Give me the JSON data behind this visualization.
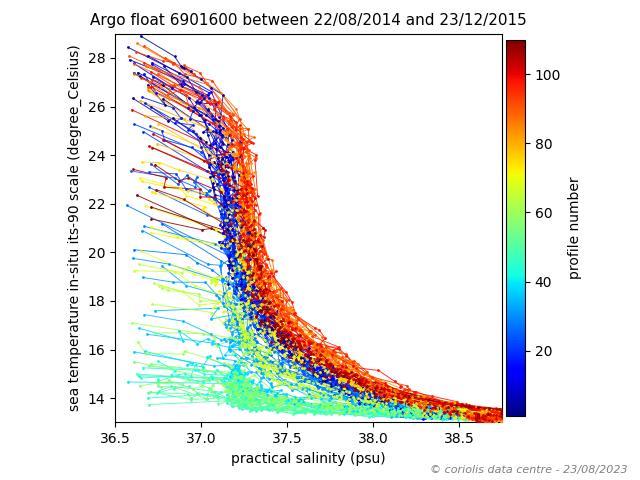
{
  "title": "Argo float 6901600 between 22/08/2014 and 23/12/2015",
  "xlabel": "practical salinity (psu)",
  "ylabel": "sea temperature in-situ its-90 scale (degree_Celsius)",
  "colorbar_label": "profile number",
  "xlim": [
    36.5,
    38.75
  ],
  "ylim": [
    13.0,
    29.0
  ],
  "xticks": [
    36.5,
    37.0,
    37.5,
    38.0,
    38.5
  ],
  "yticks": [
    14,
    16,
    18,
    20,
    22,
    24,
    26,
    28
  ],
  "cbar_ticks": [
    20,
    40,
    60,
    80,
    100
  ],
  "n_profiles": 110,
  "copyright_text": "© coriolis data centre - 23/08/2023",
  "cmap": "jet",
  "background_color": "#ffffff",
  "title_fontsize": 11,
  "label_fontsize": 10,
  "tick_fontsize": 10,
  "copyright_fontsize": 8,
  "fig_width": 6.4,
  "fig_height": 4.8,
  "fig_dpi": 100
}
